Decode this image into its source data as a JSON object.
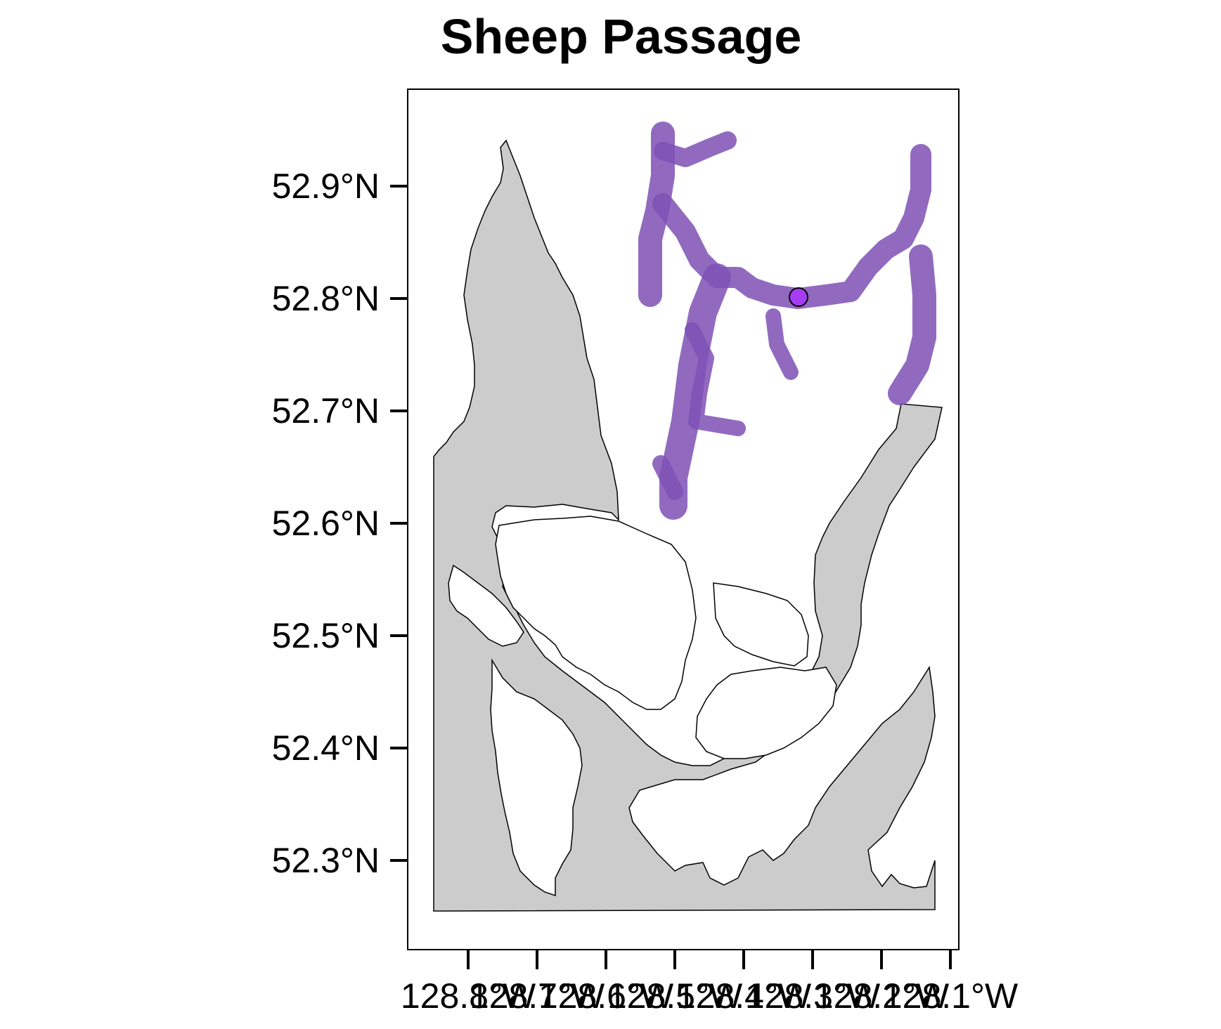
{
  "title": "Sheep Passage",
  "colors": {
    "water": "#cccccc",
    "land": "#ffffff",
    "coastline": "#000000",
    "highlight": "#7e50b5",
    "point": "#a63cf5"
  },
  "axes": {
    "y_ticks": [
      "52.9°N",
      "52.8°N",
      "52.7°N",
      "52.6°N",
      "52.5°N",
      "52.4°N",
      "52.3°N"
    ],
    "x_ticks": [
      "128.8°W",
      "128.7°W",
      "128.6°W",
      "128.5°W",
      "128.4°W",
      "128.3°W",
      "128.2°W",
      "128.1°W"
    ]
  },
  "point": {
    "lon": -128.31,
    "lat": 52.8
  }
}
